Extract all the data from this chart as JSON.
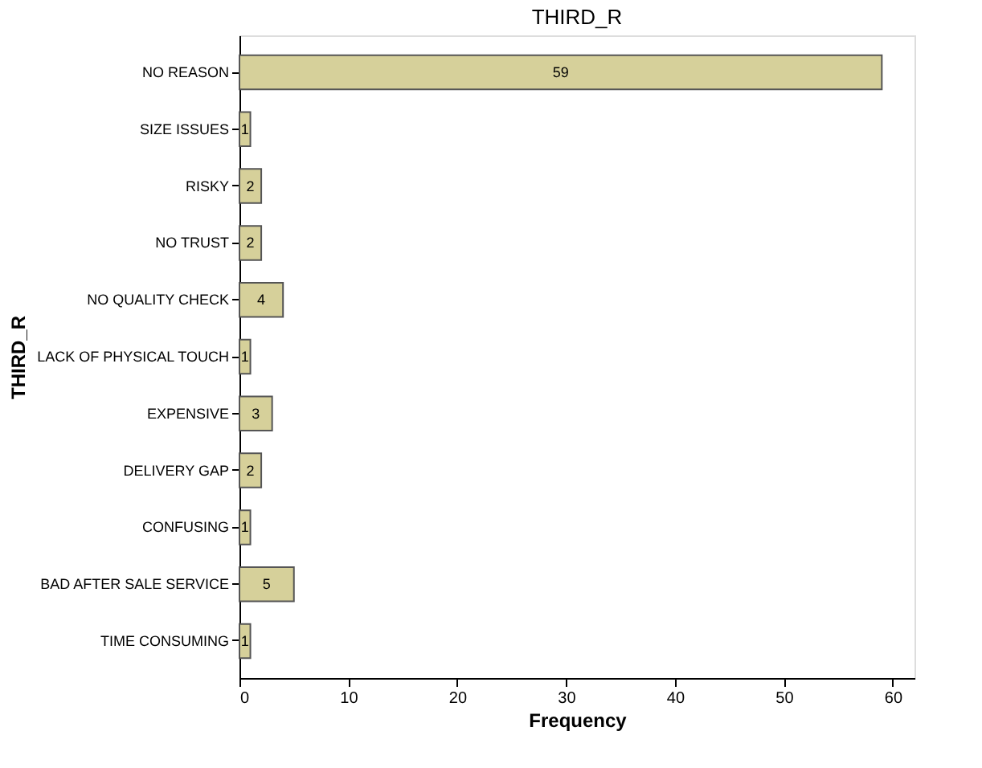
{
  "chart_data": {
    "type": "bar",
    "orientation": "horizontal",
    "title": "THIRD_R",
    "xlabel": "Frequency",
    "ylabel": "THIRD_R",
    "categories": [
      "NO REASON",
      "SIZE ISSUES",
      "RISKY",
      "NO TRUST",
      "NO QUALITY CHECK",
      "LACK OF PHYSICAL TOUCH",
      "EXPENSIVE",
      "DELIVERY GAP",
      "CONFUSING",
      "BAD AFTER SALE SERVICE",
      "TIME CONSUMING"
    ],
    "values": [
      59,
      1,
      2,
      2,
      4,
      1,
      3,
      2,
      1,
      5,
      1
    ],
    "color": "#d6d09a",
    "xlim": [
      0,
      62
    ],
    "xticks": [
      0,
      10,
      20,
      30,
      40,
      50,
      60
    ],
    "data_labels": true,
    "grid": false
  }
}
